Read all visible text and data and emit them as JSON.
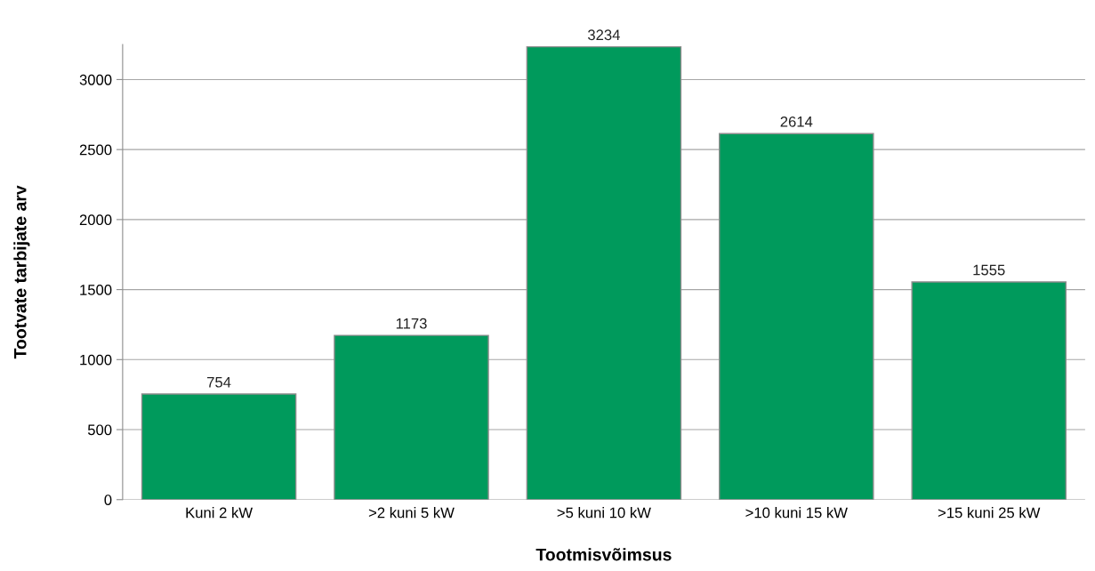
{
  "chart_data": {
    "type": "bar",
    "xlabel": "Tootmisvõimsus",
    "ylabel": "Tootvate tarbijate arv",
    "categories": [
      "Kuni 2 kW",
      ">2 kuni 5 kW",
      ">5 kuni 10 kW",
      ">10 kuni 15 kW",
      ">15 kuni 25 kW"
    ],
    "values": [
      754,
      1173,
      3234,
      2614,
      1555
    ],
    "color": "#009a5c",
    "ylim": [
      0,
      3250
    ],
    "yticks": [
      0,
      500,
      1000,
      1500,
      2000,
      2500,
      3000
    ],
    "grid": "y",
    "data_labels": true,
    "legend": false
  }
}
